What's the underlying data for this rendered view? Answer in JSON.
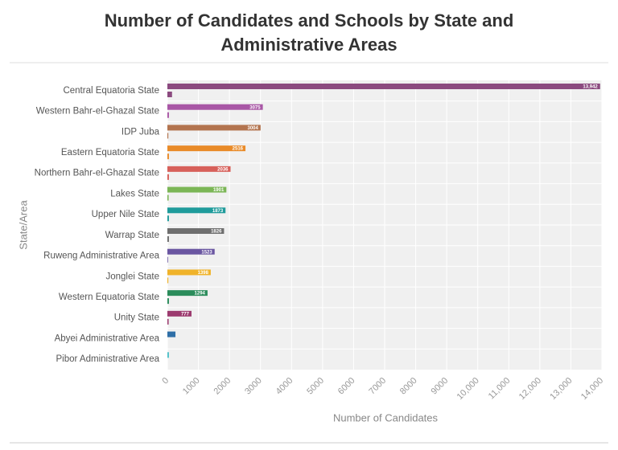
{
  "chart_data": {
    "type": "bar",
    "orientation": "horizontal",
    "title": "Number of Candidates and Schools by State and Administrative Areas",
    "x_label": "Number of Candidates",
    "y_label": "State/Area",
    "categories": [
      "Central Equatoria State",
      "Western Bahr-el-Ghazal State",
      "IDP Juba",
      "Eastern Equatoria State",
      "Northern Bahr-el-Ghazal State",
      "Lakes State",
      "Upper Nile State",
      "Warrap State",
      "Ruweng Administrative Area",
      "Jonglei State",
      "Western Equatoria State",
      "Unity State",
      "Abyei Administrative Area",
      "Pibor Administrative Area"
    ],
    "colors": [
      "#8b4a7f",
      "#a957a6",
      "#b3744f",
      "#e98b29",
      "#d7605a",
      "#7bb656",
      "#1f9b9b",
      "#6f6f6f",
      "#6a56a1",
      "#f0b32a",
      "#2b8c5b",
      "#9c3b6f",
      "#2f6fa7",
      "#50c1c9"
    ],
    "series": [
      {
        "values": [
          13942,
          3075,
          3004,
          2516,
          2036,
          1901,
          1873,
          1826,
          1523,
          1398,
          1294,
          777,
          260,
          50
        ],
        "value_labels": [
          "13,942",
          "3075",
          "3004",
          "2516",
          "2036",
          "1901",
          "1873",
          "1826",
          "1523",
          "1398",
          "1294",
          "777",
          null,
          null
        ]
      },
      {
        "values": [
          150,
          50,
          30,
          50,
          50,
          40,
          50,
          50,
          20,
          30,
          50,
          40,
          0,
          0
        ]
      }
    ],
    "xlim": [
      0,
      14000
    ],
    "xticks": [
      0,
      1000,
      2000,
      3000,
      4000,
      5000,
      6000,
      7000,
      8000,
      9000,
      {
        "value": 10000,
        "label": "10,000"
      },
      {
        "value": 11000,
        "label": "11,000"
      },
      {
        "value": 12000,
        "label": "12,000"
      },
      {
        "value": 13000,
        "label": "13,000"
      },
      {
        "value": 14000,
        "label": "14,000"
      }
    ],
    "grid": true
  }
}
